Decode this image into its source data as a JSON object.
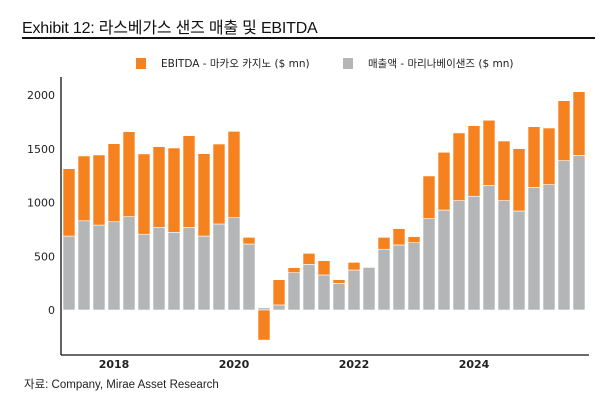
{
  "header": {
    "title": "Exhibit 12: 라스베가스 샌즈 매출 및 EBITDA"
  },
  "footer": {
    "source": "자료: Company, Mirae Asset Research"
  },
  "colors": {
    "ebitda": "#F5821F",
    "revenue": "#B4B5B7",
    "axis": "#111111"
  },
  "chart_data": {
    "type": "bar",
    "stacked": true,
    "title": "Exhibit 12: 라스베가스 샌즈 매출 및 EBITDA",
    "xlabel": "",
    "ylabel": "",
    "ylim": [
      -400,
      2100
    ],
    "yticks": [
      0,
      500,
      1000,
      1500,
      2000
    ],
    "xtick_labels": [
      {
        "label": "2018",
        "category": "2017Q4"
      },
      {
        "label": "2020",
        "category": "2019Q4"
      },
      {
        "label": "2022",
        "category": "2021Q4"
      },
      {
        "label": "2024",
        "category": "2023Q4"
      }
    ],
    "grid": false,
    "legend_position": "top-center",
    "categories": [
      "2017Q1",
      "2017Q2",
      "2017Q3",
      "2017Q4",
      "2018Q1",
      "2018Q2",
      "2018Q3",
      "2018Q4",
      "2019Q1",
      "2019Q2",
      "2019Q3",
      "2019Q4",
      "2020Q1",
      "2020Q2",
      "2020Q3",
      "2020Q4",
      "2021Q1",
      "2021Q2",
      "2021Q3",
      "2021Q4",
      "2022Q1",
      "2022Q2",
      "2022Q3",
      "2022Q4",
      "2023Q1",
      "2023Q2",
      "2023Q3",
      "2023Q4",
      "2024Q1",
      "2024Q2",
      "2024Q3",
      "2024Q4",
      "2025Q1",
      "2025Q2",
      "2025Q3"
    ],
    "series": [
      {
        "name": "매출액 - 마리나베이샌즈 ($ mn)",
        "key": "revenue",
        "values": [
          688,
          830,
          790,
          821,
          868,
          705,
          769,
          723,
          769,
          688,
          800,
          859,
          614,
          20,
          47,
          347,
          425,
          326,
          248,
          372,
          397,
          565,
          605,
          626,
          850,
          930,
          1017,
          1058,
          1160,
          1017,
          921,
          1141,
          1166,
          1389,
          1439
        ]
      },
      {
        "name": "EBITDA - 마카오 카지노 ($ mn)",
        "key": "ebitda",
        "values": [
          627,
          603,
          652,
          726,
          791,
          747,
          750,
          784,
          853,
          766,
          744,
          803,
          62,
          -280,
          235,
          47,
          102,
          133,
          34,
          71,
          5,
          111,
          152,
          56,
          397,
          537,
          630,
          657,
          605,
          555,
          580,
          564,
          527,
          558,
          592
        ]
      }
    ]
  }
}
